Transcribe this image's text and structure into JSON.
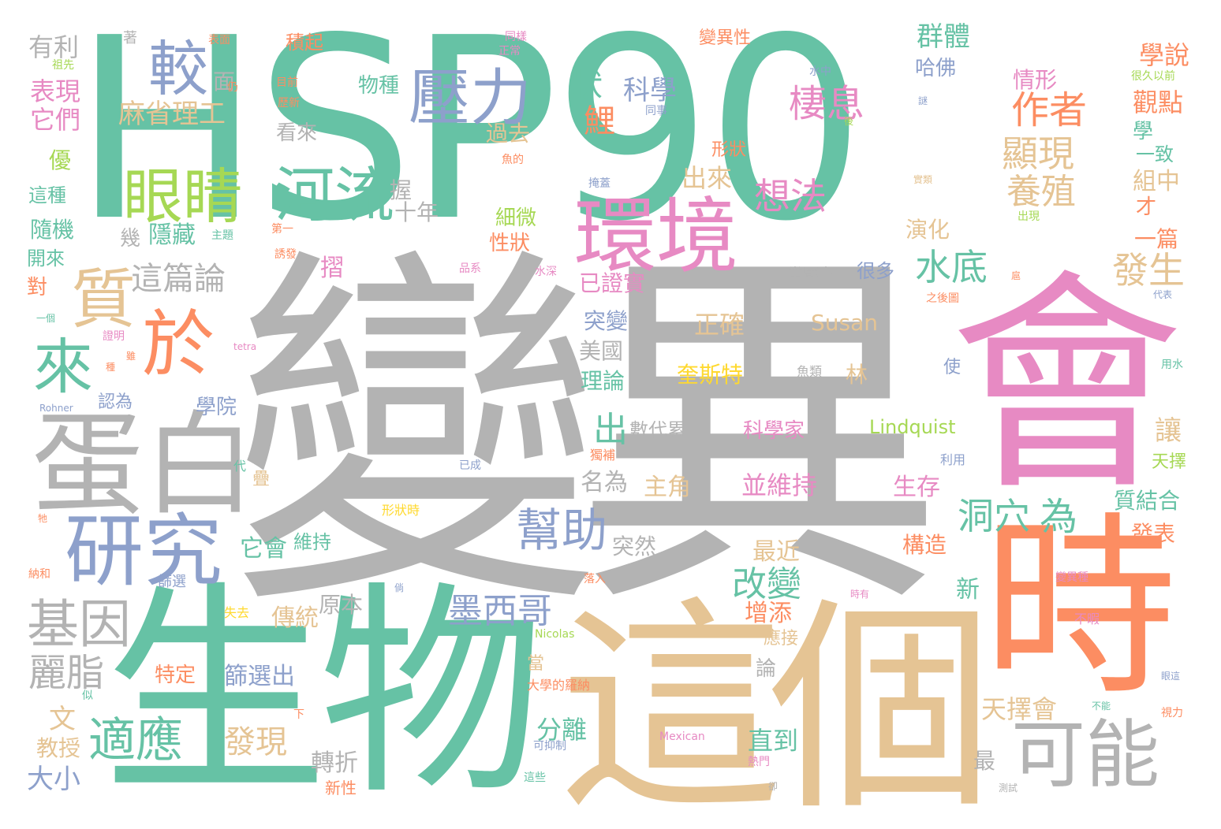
{
  "palette": {
    "teal": "#66c2a5",
    "orange": "#fc8d62",
    "blue": "#8da0cb",
    "pink": "#e78ac3",
    "green": "#a6d854",
    "yellow": "#ffd92f",
    "tan": "#e5c494",
    "gray": "#b3b3b3"
  },
  "words": {
    "w001": "HSP90",
    "w002": "變異",
    "w003": "會",
    "w004": "時",
    "w005": "生物",
    "w006": "這個",
    "w007": "蛋白",
    "w008": "研究",
    "w009": "環境",
    "w010": "壓力",
    "w011": "較",
    "w012": "眼睛",
    "w013": "河流",
    "w014": "於",
    "w015": "質",
    "w016": "來",
    "w017": "可能",
    "w018": "基因",
    "w019": "麗脂",
    "w020": "適應",
    "w021": "幫助",
    "w022": "棲息",
    "w023": "作者",
    "w024": "顯現",
    "w025": "養殖",
    "w026": "想法",
    "w027": "水底",
    "w028": "發生",
    "w029": "為",
    "w030": "洞穴",
    "w031": "墨西哥",
    "w032": "改變",
    "w033": "這篇論",
    "w034": "狀",
    "w035": "鯉",
    "w036": "科學",
    "w037": "出",
    "w038": "群體",
    "w039": "學說",
    "w040": "觀點",
    "w041": "情形",
    "w042": "哈佛",
    "w043": "有利",
    "w044": "表現",
    "w045": "它們",
    "w046": "麻省理工",
    "w047": "面",
    "w048": "積起",
    "w049": "物種",
    "w050": "過去",
    "w051": "看來",
    "w052": "形狀",
    "w053": "出來",
    "w054": "握",
    "w055": "十年",
    "w056": "隱藏",
    "w057": "幾",
    "w058": "細微",
    "w059": "性狀",
    "w060": "摺",
    "w061": "已證實",
    "w062": "突變",
    "w063": "美國",
    "w064": "理論",
    "w065": "學院",
    "w066": "正確",
    "w067": "Susan",
    "w068": "奎斯特",
    "w069": "林",
    "w070": "Lindquist",
    "w071": "科學家",
    "w072": "數代累",
    "w073": "並維持",
    "w074": "生存",
    "w075": "主角",
    "w076": "名為",
    "w077": "突然",
    "w078": "最近",
    "w079": "它會",
    "w080": "維持",
    "w081": "傳統",
    "w082": "原本",
    "w083": "轉折",
    "w084": "篩選出",
    "w085": "特定",
    "w086": "大小",
    "w087": "文",
    "w088": "教授",
    "w089": "發現",
    "w090": "直到",
    "w091": "增添",
    "w092": "應接",
    "w093": "論",
    "w094": "分離",
    "w095": "天擇會",
    "w096": "最",
    "w097": "新",
    "w098": "構造",
    "w099": "讓",
    "w100": "質結合",
    "w101": "發表",
    "w102": "天擇",
    "w103": "一致",
    "w104": "組中",
    "w105": "才",
    "w106": "一篇",
    "w107": "演化",
    "w108": "很多",
    "w109": "當壓力",
    "w110": "優",
    "w111": "這種",
    "w112": "隨機",
    "w113": "開來",
    "w114": "對",
    "w115": "認為",
    "w116": "著",
    "w117": "表面",
    "w118": "同樣",
    "w119": "正常",
    "w120": "變異性",
    "w121": "學",
    "w122": "很久以前",
    "w123": "水中",
    "w124": "代表",
    "w125": "用水",
    "w126": "利用",
    "w127": "不暇",
    "w128": "視力",
    "w129": "眼這",
    "w130": "不能",
    "w131": "測試",
    "w132": "卻",
    "w133": "熱門",
    "w134": "Mexican",
    "w135": "可抑制",
    "w136": "這些",
    "w137": "大學的羅納",
    "w138": "當",
    "w139": "Nicolas",
    "w140": "失去",
    "w141": "篩選",
    "w142": "似",
    "w143": "下",
    "w144": "新性",
    "w145": "納和",
    "w146": "牠",
    "w147": "代",
    "w148": "疊",
    "w149": "已成",
    "w150": "形狀時",
    "w151": "獨補",
    "w152": "落入",
    "w153": "倘",
    "w154": "時有",
    "w155": "魚類",
    "w156": "Rohner",
    "w157": "tetra",
    "w158": "種",
    "w159": "證明",
    "w160": "一個",
    "w161": "主題",
    "w162": "誘發",
    "w163": "第一",
    "w164": "品系",
    "w165": "水深",
    "w166": "使",
    "w167": "之後圖",
    "w168": "扈",
    "w169": "目前",
    "w170": "歷新",
    "w171": "祖先",
    "w172": "仍",
    "w173": "同事",
    "w174": "魚的",
    "w175": "掩蓋",
    "w176": "後",
    "w177": "謎",
    "w178": "實類",
    "w179": "出現",
    "w180": "變異種",
    "w181": "雖"
  }
}
